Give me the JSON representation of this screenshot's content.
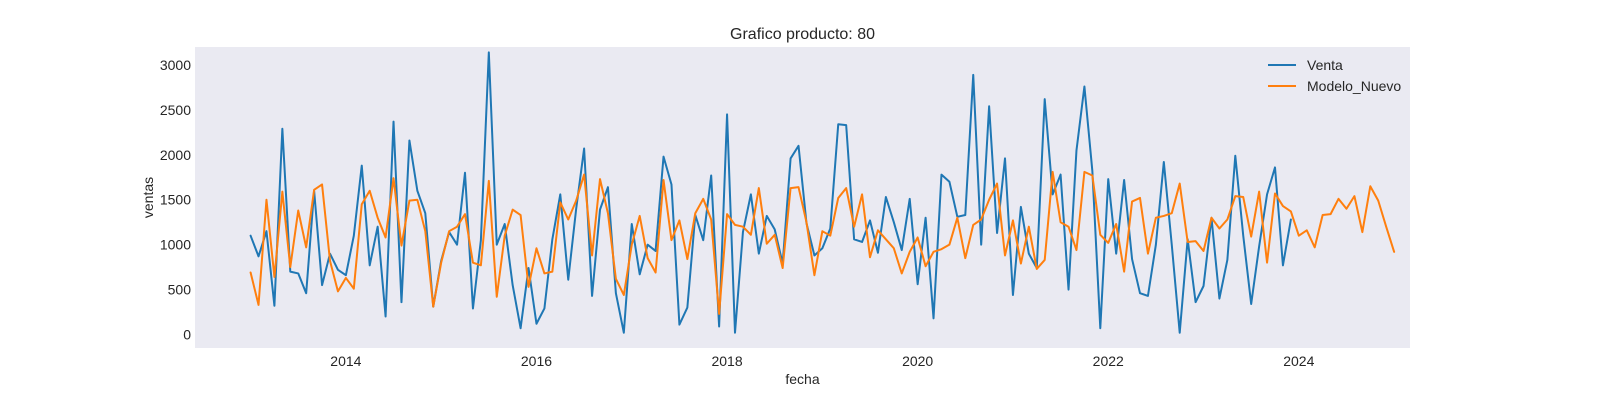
{
  "chart_data": {
    "type": "line",
    "title": "Grafico producto: 80",
    "xlabel": "fecha",
    "ylabel": "ventas",
    "xlim": [
      "2012-06-01",
      "2025-03-01"
    ],
    "ylim": [
      -150,
      3200
    ],
    "x_ticks": [
      2014,
      2016,
      2018,
      2020,
      2022,
      2024
    ],
    "y_ticks": [
      0,
      500,
      1000,
      1500,
      2000,
      2500,
      3000
    ],
    "grid": false,
    "legend_position": "top-right",
    "start_date": "2013-01",
    "series": [
      {
        "name": "Venta",
        "color": "#1f77b4",
        "values": [
          1100,
          870,
          1150,
          320,
          2290,
          700,
          680,
          460,
          1600,
          550,
          900,
          720,
          660,
          1100,
          1880,
          770,
          1200,
          200,
          2370,
          360,
          2160,
          1600,
          1350,
          310,
          820,
          1140,
          1000,
          1800,
          290,
          1050,
          3140,
          1000,
          1230,
          550,
          70,
          740,
          120,
          290,
          1060,
          1560,
          610,
          1400,
          2070,
          430,
          1390,
          1640,
          460,
          20,
          1230,
          670,
          1000,
          930,
          1980,
          1670,
          110,
          300,
          1330,
          1050,
          1770,
          90,
          2450,
          20,
          1140,
          1560,
          900,
          1320,
          1170,
          790,
          1960,
          2100,
          1240,
          880,
          960,
          1180,
          2340,
          2330,
          1060,
          1030,
          1270,
          910,
          1530,
          1250,
          940,
          1510,
          560,
          1300,
          180,
          1780,
          1700,
          1310,
          1330,
          2890,
          1000,
          2540,
          1130,
          1960,
          440,
          1420,
          900,
          740,
          2620,
          1560,
          1780,
          500,
          2050,
          2760,
          1820,
          70,
          1730,
          900,
          1720,
          840,
          460,
          430,
          1000,
          1920,
          1000,
          20,
          1060,
          360,
          540,
          1300,
          400,
          830,
          1990,
          1100,
          340,
          980,
          1560,
          1860,
          770,
          1280
        ],
        "_series_note": "monthly values Jan 2013 - Dec 2023"
      },
      {
        "name": "Modelo_Nuevo",
        "color": "#ff7f0e",
        "values": [
          690,
          330,
          1500,
          640,
          1590,
          750,
          1380,
          970,
          1610,
          1670,
          820,
          480,
          630,
          510,
          1450,
          1600,
          1300,
          1080,
          1740,
          990,
          1490,
          1500,
          1150,
          310,
          800,
          1150,
          1200,
          1340,
          800,
          770,
          1710,
          420,
          1100,
          1390,
          1330,
          530,
          960,
          680,
          700,
          1470,
          1280,
          1490,
          1780,
          880,
          1730,
          1350,
          620,
          440,
          1000,
          1320,
          850,
          690,
          1720,
          1050,
          1270,
          840,
          1350,
          1510,
          1280,
          230,
          1340,
          1220,
          1200,
          1110,
          1630,
          1010,
          1110,
          740,
          1630,
          1640,
          1250,
          660,
          1150,
          1100,
          1520,
          1630,
          1200,
          1560,
          860,
          1160,
          1060,
          960,
          680,
          920,
          1080,
          760,
          920,
          950,
          1000,
          1300,
          850,
          1220,
          1280,
          1500,
          1680,
          880,
          1270,
          790,
          1200,
          730,
          830,
          1810,
          1250,
          1200,
          940,
          1810,
          1770,
          1110,
          1020,
          1230,
          700,
          1480,
          1520,
          900,
          1300,
          1320,
          1350,
          1680,
          1030,
          1040,
          930,
          1300,
          1180,
          1280,
          1540,
          1530,
          1090,
          1590,
          800,
          1570,
          1430,
          1370,
          1100,
          1160,
          970,
          1330,
          1340,
          1510,
          1400,
          1540,
          1140,
          1650,
          1490,
          1200,
          920
        ]
      }
    ]
  }
}
